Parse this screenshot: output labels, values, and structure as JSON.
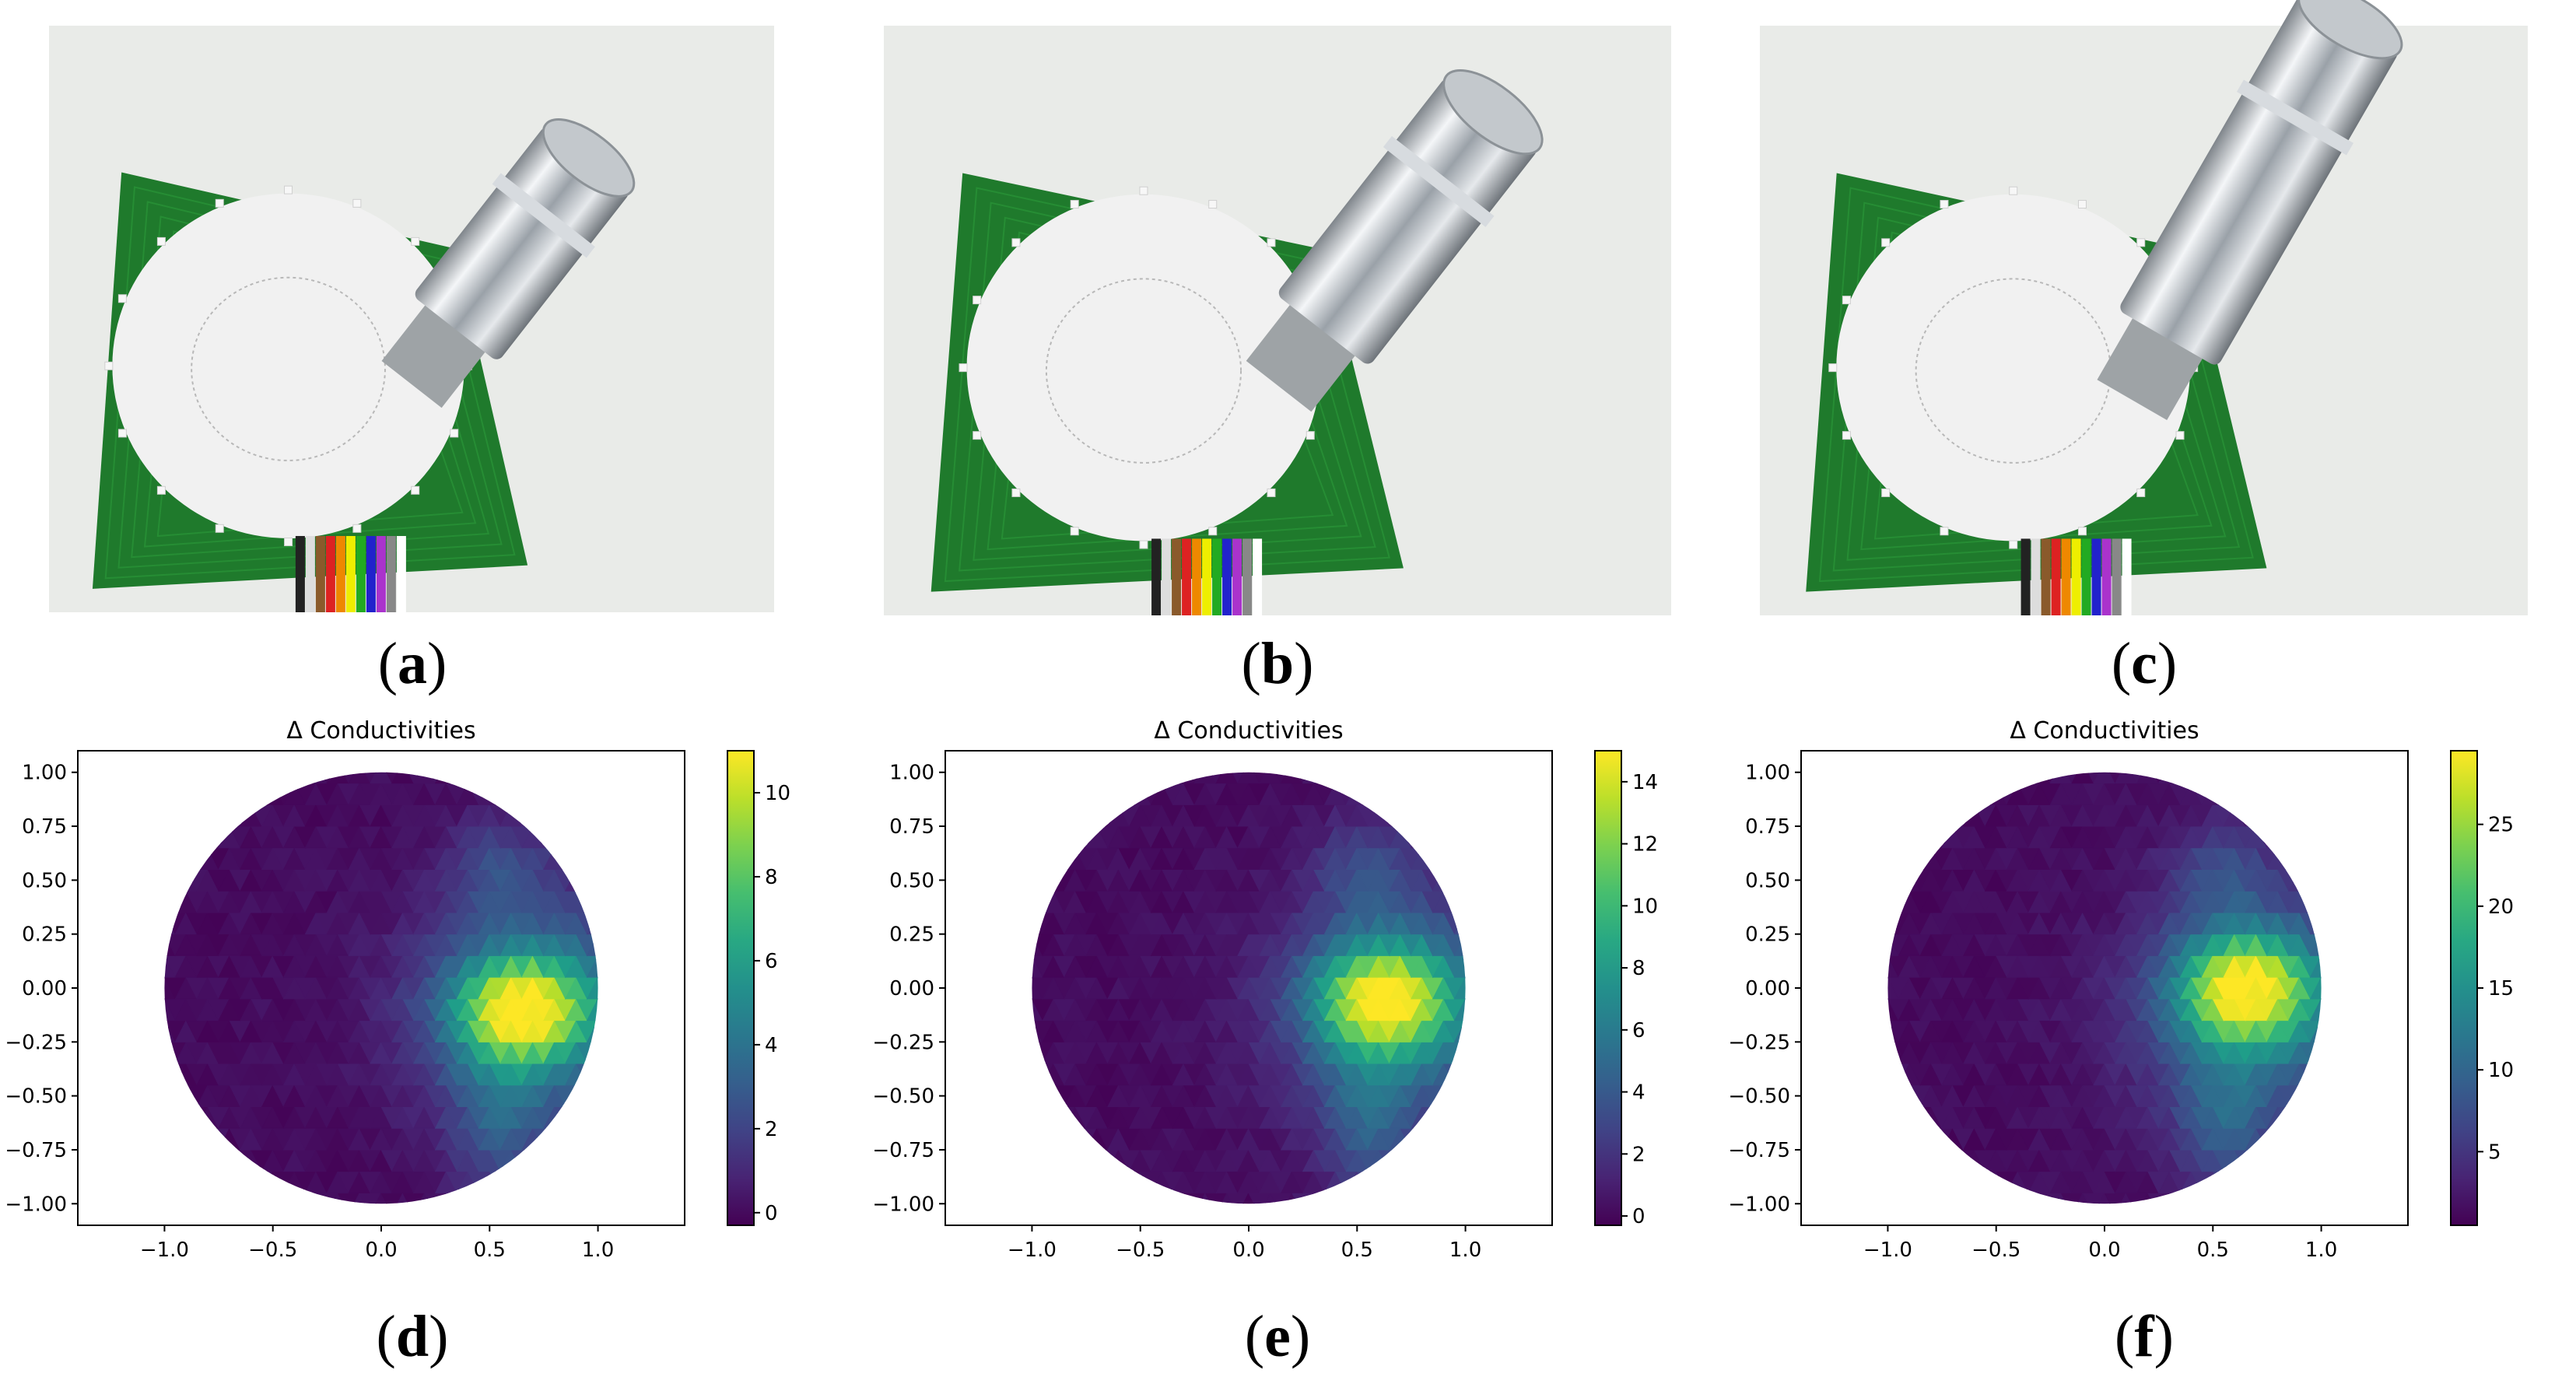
{
  "figure": {
    "panels": [
      {
        "label": "a",
        "kind": "photo"
      },
      {
        "label": "b",
        "kind": "photo"
      },
      {
        "label": "c",
        "kind": "photo"
      },
      {
        "label": "d",
        "kind": "plot"
      },
      {
        "label": "e",
        "kind": "plot"
      },
      {
        "label": "f",
        "kind": "plot"
      }
    ]
  },
  "colors": {
    "pcb_green": "#1f7a2c",
    "disk": "#f1f1f1",
    "chrome": "#c9ced3",
    "background": "#e9ebe8"
  },
  "chart_data": [
    {
      "type": "heatmap",
      "title": "Δ Conductivities",
      "xlabel": "",
      "ylabel": "",
      "xlim": [
        -1.4,
        1.4
      ],
      "ylim": [
        -1.1,
        1.1
      ],
      "xticks": [
        "−1.0",
        "−0.5",
        "0.0",
        "0.5",
        "1.0"
      ],
      "yticks": [
        "1.00",
        "0.75",
        "0.50",
        "0.25",
        "0.00",
        "−0.25",
        "−0.50",
        "−0.75",
        "−1.00"
      ],
      "colorbar": {
        "min": -0.3,
        "max": 11,
        "ticks": [
          0,
          2,
          4,
          6,
          8,
          10
        ]
      },
      "peak": {
        "x": 0.65,
        "y": -0.1,
        "value": 11
      },
      "grid": false,
      "colormap": "viridis"
    },
    {
      "type": "heatmap",
      "title": "Δ Conductivities",
      "xlabel": "",
      "ylabel": "",
      "xlim": [
        -1.4,
        1.4
      ],
      "ylim": [
        -1.1,
        1.1
      ],
      "xticks": [
        "−1.0",
        "−0.5",
        "0.0",
        "0.5",
        "1.0"
      ],
      "yticks": [
        "1.00",
        "0.75",
        "0.50",
        "0.25",
        "0.00",
        "−0.25",
        "−0.50",
        "−0.75",
        "−1.00"
      ],
      "colorbar": {
        "min": -0.3,
        "max": 15,
        "ticks": [
          0,
          2,
          4,
          6,
          8,
          10,
          12,
          14
        ]
      },
      "peak": {
        "x": 0.62,
        "y": -0.05,
        "value": 15
      },
      "grid": false,
      "colormap": "viridis"
    },
    {
      "type": "heatmap",
      "title": "Δ Conductivities",
      "xlabel": "",
      "ylabel": "",
      "xlim": [
        -1.4,
        1.4
      ],
      "ylim": [
        -1.1,
        1.1
      ],
      "xticks": [
        "−1.0",
        "−0.5",
        "0.0",
        "0.5",
        "1.0"
      ],
      "yticks": [
        "1.00",
        "0.75",
        "0.50",
        "0.25",
        "0.00",
        "−0.25",
        "−0.50",
        "−0.75",
        "−1.00"
      ],
      "colorbar": {
        "min": 0.5,
        "max": 29.5,
        "ticks": [
          5,
          10,
          15,
          20,
          25
        ]
      },
      "peak": {
        "x": 0.65,
        "y": 0.0,
        "value": 29.5
      },
      "grid": false,
      "colormap": "viridis"
    }
  ]
}
